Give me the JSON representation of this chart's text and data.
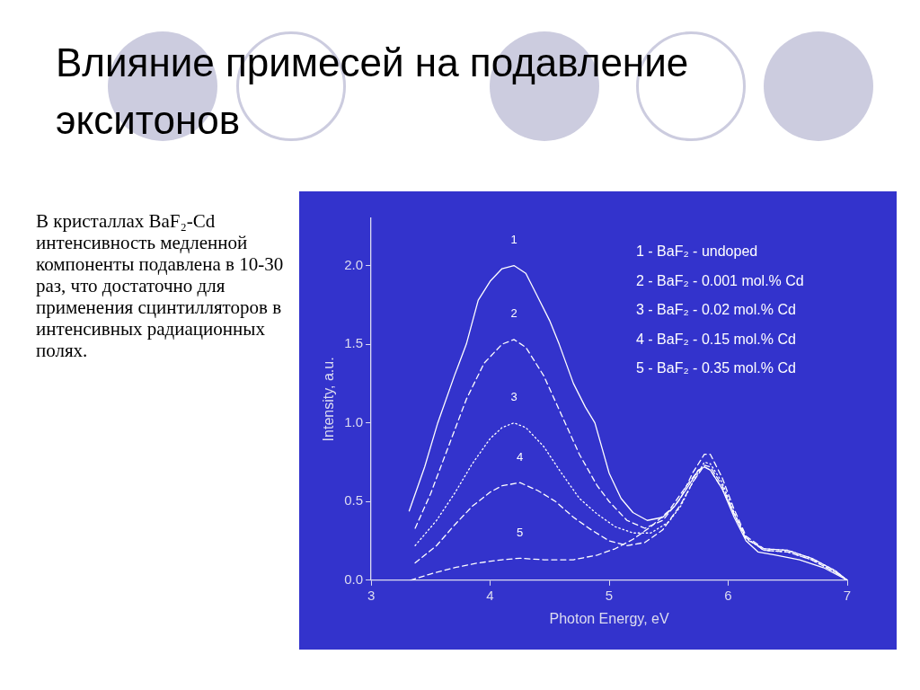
{
  "chart_data": {
    "type": "line",
    "title": "Влияние примесей на подавление экситонов",
    "xlabel": "Photon Energy, eV",
    "ylabel": "Intensity, a.u.",
    "xlim": [
      3,
      7
    ],
    "xticks": [
      3,
      4,
      5,
      6,
      7
    ],
    "ylim": [
      0,
      2.3
    ],
    "yticks": [
      {
        "value": 0,
        "label": "0.0"
      },
      {
        "value": 0.5,
        "label": "0.5"
      },
      {
        "value": 1,
        "label": "1.0"
      },
      {
        "value": 1.5,
        "label": "1.5"
      },
      {
        "value": 2,
        "label": "2.0"
      }
    ],
    "grid": false,
    "marker": "none",
    "series": [
      {
        "name": "1",
        "color": "#ffffff",
        "line_style": "solid",
        "x": [
          3.32,
          3.45,
          3.56,
          3.7,
          3.8,
          3.9,
          4.0,
          4.1,
          4.2,
          4.3,
          4.4,
          4.5,
          4.58,
          4.7,
          4.8,
          4.88,
          5.0,
          5.1,
          5.2,
          5.32,
          5.45,
          5.55,
          5.65,
          5.75,
          5.8,
          5.85,
          5.95,
          6.05,
          6.15,
          6.25,
          6.4,
          6.6,
          6.8,
          6.95,
          7.0
        ],
        "values": [
          0.44,
          0.72,
          1.0,
          1.3,
          1.5,
          1.78,
          1.9,
          1.98,
          2.0,
          1.95,
          1.8,
          1.65,
          1.5,
          1.25,
          1.1,
          1.0,
          0.68,
          0.52,
          0.43,
          0.38,
          0.4,
          0.47,
          0.58,
          0.7,
          0.72,
          0.7,
          0.58,
          0.4,
          0.25,
          0.18,
          0.16,
          0.13,
          0.08,
          0.02,
          0.0
        ]
      },
      {
        "name": "2",
        "color": "#ffffff",
        "line_style": "dashed",
        "x": [
          3.37,
          3.5,
          3.65,
          3.8,
          3.95,
          4.1,
          4.2,
          4.3,
          4.45,
          4.6,
          4.75,
          4.9,
          5.0,
          5.15,
          5.3,
          5.45,
          5.6,
          5.7,
          5.8,
          5.85,
          5.95,
          6.05,
          6.15,
          6.3,
          6.5,
          6.7,
          6.9,
          7.0
        ],
        "values": [
          0.33,
          0.55,
          0.85,
          1.15,
          1.38,
          1.5,
          1.53,
          1.48,
          1.3,
          1.05,
          0.8,
          0.6,
          0.5,
          0.38,
          0.33,
          0.38,
          0.52,
          0.68,
          0.8,
          0.8,
          0.65,
          0.45,
          0.28,
          0.2,
          0.19,
          0.14,
          0.06,
          0.0
        ]
      },
      {
        "name": "3",
        "color": "#ffffff",
        "line_style": "dotted",
        "x": [
          3.37,
          3.55,
          3.7,
          3.85,
          4.0,
          4.1,
          4.2,
          4.3,
          4.45,
          4.6,
          4.75,
          4.9,
          5.05,
          5.2,
          5.35,
          5.5,
          5.6,
          5.7,
          5.8,
          5.85,
          5.95,
          6.05,
          6.15,
          6.3,
          6.5,
          6.7,
          6.9,
          7.0
        ],
        "values": [
          0.22,
          0.38,
          0.55,
          0.74,
          0.9,
          0.97,
          1.0,
          0.97,
          0.85,
          0.68,
          0.52,
          0.42,
          0.34,
          0.3,
          0.3,
          0.37,
          0.47,
          0.62,
          0.75,
          0.74,
          0.62,
          0.43,
          0.27,
          0.19,
          0.18,
          0.13,
          0.05,
          0.0
        ]
      },
      {
        "name": "4",
        "color": "#ffffff",
        "line_style": "dashed",
        "x": [
          3.37,
          3.55,
          3.7,
          3.85,
          4.0,
          4.1,
          4.25,
          4.4,
          4.55,
          4.7,
          4.85,
          5.0,
          5.15,
          5.3,
          5.45,
          5.6,
          5.7,
          5.8,
          5.85,
          5.95,
          6.05,
          6.15,
          6.3,
          6.5,
          6.7,
          6.9,
          7.0
        ],
        "values": [
          0.11,
          0.22,
          0.35,
          0.47,
          0.56,
          0.6,
          0.62,
          0.57,
          0.5,
          0.4,
          0.32,
          0.25,
          0.22,
          0.24,
          0.32,
          0.48,
          0.62,
          0.73,
          0.72,
          0.6,
          0.42,
          0.26,
          0.2,
          0.19,
          0.14,
          0.06,
          0.0
        ]
      },
      {
        "name": "5",
        "color": "#ffffff",
        "line_style": "dashed",
        "x": [
          3.33,
          3.5,
          3.7,
          3.9,
          4.1,
          4.25,
          4.45,
          4.7,
          4.9,
          5.05,
          5.2,
          5.35,
          5.5,
          5.65,
          5.75,
          5.8,
          5.85,
          5.95,
          6.05,
          6.15,
          6.3,
          6.5,
          6.7,
          6.9,
          7.0
        ],
        "values": [
          0.0,
          0.04,
          0.08,
          0.11,
          0.13,
          0.14,
          0.13,
          0.13,
          0.16,
          0.2,
          0.26,
          0.34,
          0.44,
          0.6,
          0.7,
          0.72,
          0.7,
          0.58,
          0.42,
          0.27,
          0.19,
          0.18,
          0.13,
          0.05,
          0.0
        ]
      }
    ],
    "annotations": [
      "В кристаллах BaF₂-Cd интенсивность медленной компоненты подавлена в 10-30 раз, что достаточно для применения сцинтилляторов в интенсивных радиационных полях.",
      "1 - BaF₂ - undoped",
      "2 - BaF₂ - 0.001 mol.% Cd",
      "3 - BaF₂ - 0.02 mol.% Cd",
      "4 - BaF₂ - 0.15 mol.% Cd",
      "5 - BaF₂ - 0.35 mol.% Cd"
    ]
  }
}
